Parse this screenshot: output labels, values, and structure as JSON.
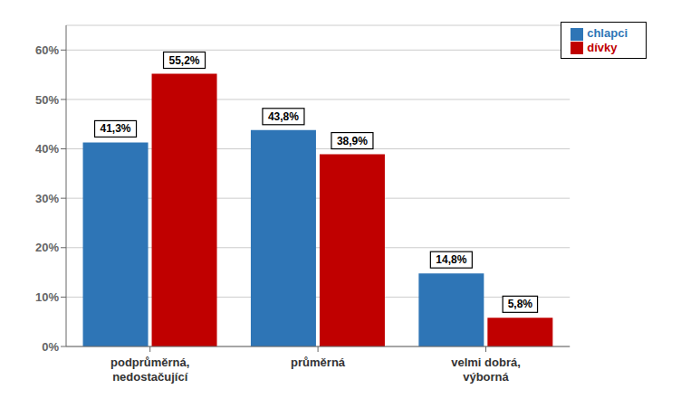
{
  "chart_data": {
    "type": "bar",
    "categories": [
      "podprůměrná,\nnedostačující",
      "průměrná",
      "velmi dobrá,\nvýborná"
    ],
    "series": [
      {
        "name": "chlapci",
        "color": "#2E75B6",
        "values": [
          41.3,
          43.8,
          14.8
        ],
        "value_labels": [
          "41,3%",
          "43,8%",
          "14,8%"
        ]
      },
      {
        "name": "dívky",
        "color": "#C00000",
        "values": [
          55.2,
          38.9,
          5.8
        ],
        "value_labels": [
          "55,2%",
          "38,9%",
          "5,8%"
        ]
      }
    ],
    "ylim": [
      0,
      65
    ],
    "yticks": [
      {
        "value": 0,
        "label": "0%"
      },
      {
        "value": 10,
        "label": "10%"
      },
      {
        "value": 20,
        "label": "20%"
      },
      {
        "value": 30,
        "label": "30%"
      },
      {
        "value": 40,
        "label": "40%"
      },
      {
        "value": 50,
        "label": "50%"
      },
      {
        "value": 60,
        "label": "60%"
      }
    ],
    "grid": true,
    "legend": "upper right",
    "data_labels": true
  }
}
